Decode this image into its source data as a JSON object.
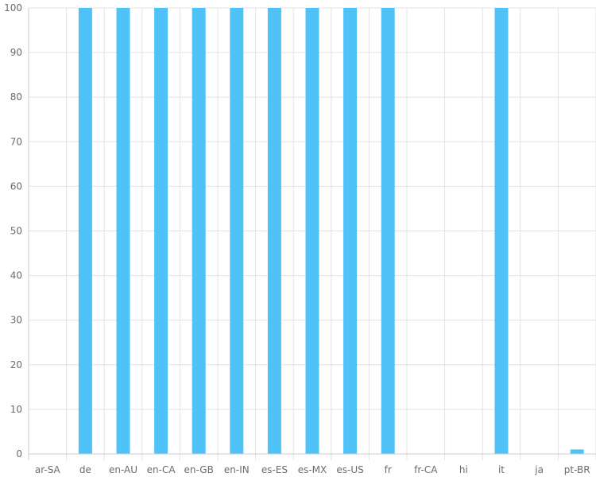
{
  "chart_data": {
    "type": "bar",
    "title": "",
    "xlabel": "",
    "ylabel": "",
    "categories": [
      "ar-SA",
      "de",
      "en-AU",
      "en-CA",
      "en-GB",
      "en-IN",
      "es-ES",
      "es-MX",
      "es-US",
      "fr",
      "fr-CA",
      "hi",
      "it",
      "ja",
      "pt-BR"
    ],
    "values": [
      0,
      100,
      100,
      100,
      100,
      100,
      100,
      100,
      100,
      100,
      0,
      0,
      100,
      0,
      1
    ],
    "ylim": [
      0,
      100
    ],
    "yticks": [
      0,
      10,
      20,
      30,
      40,
      50,
      60,
      70,
      80,
      90,
      100
    ],
    "grid": true,
    "legend": "none",
    "colors": {
      "bar": "#4fc3f7",
      "grid": "#e3e3e3",
      "axis": "#cccccc",
      "tick_text": "#6b6b6b"
    }
  }
}
